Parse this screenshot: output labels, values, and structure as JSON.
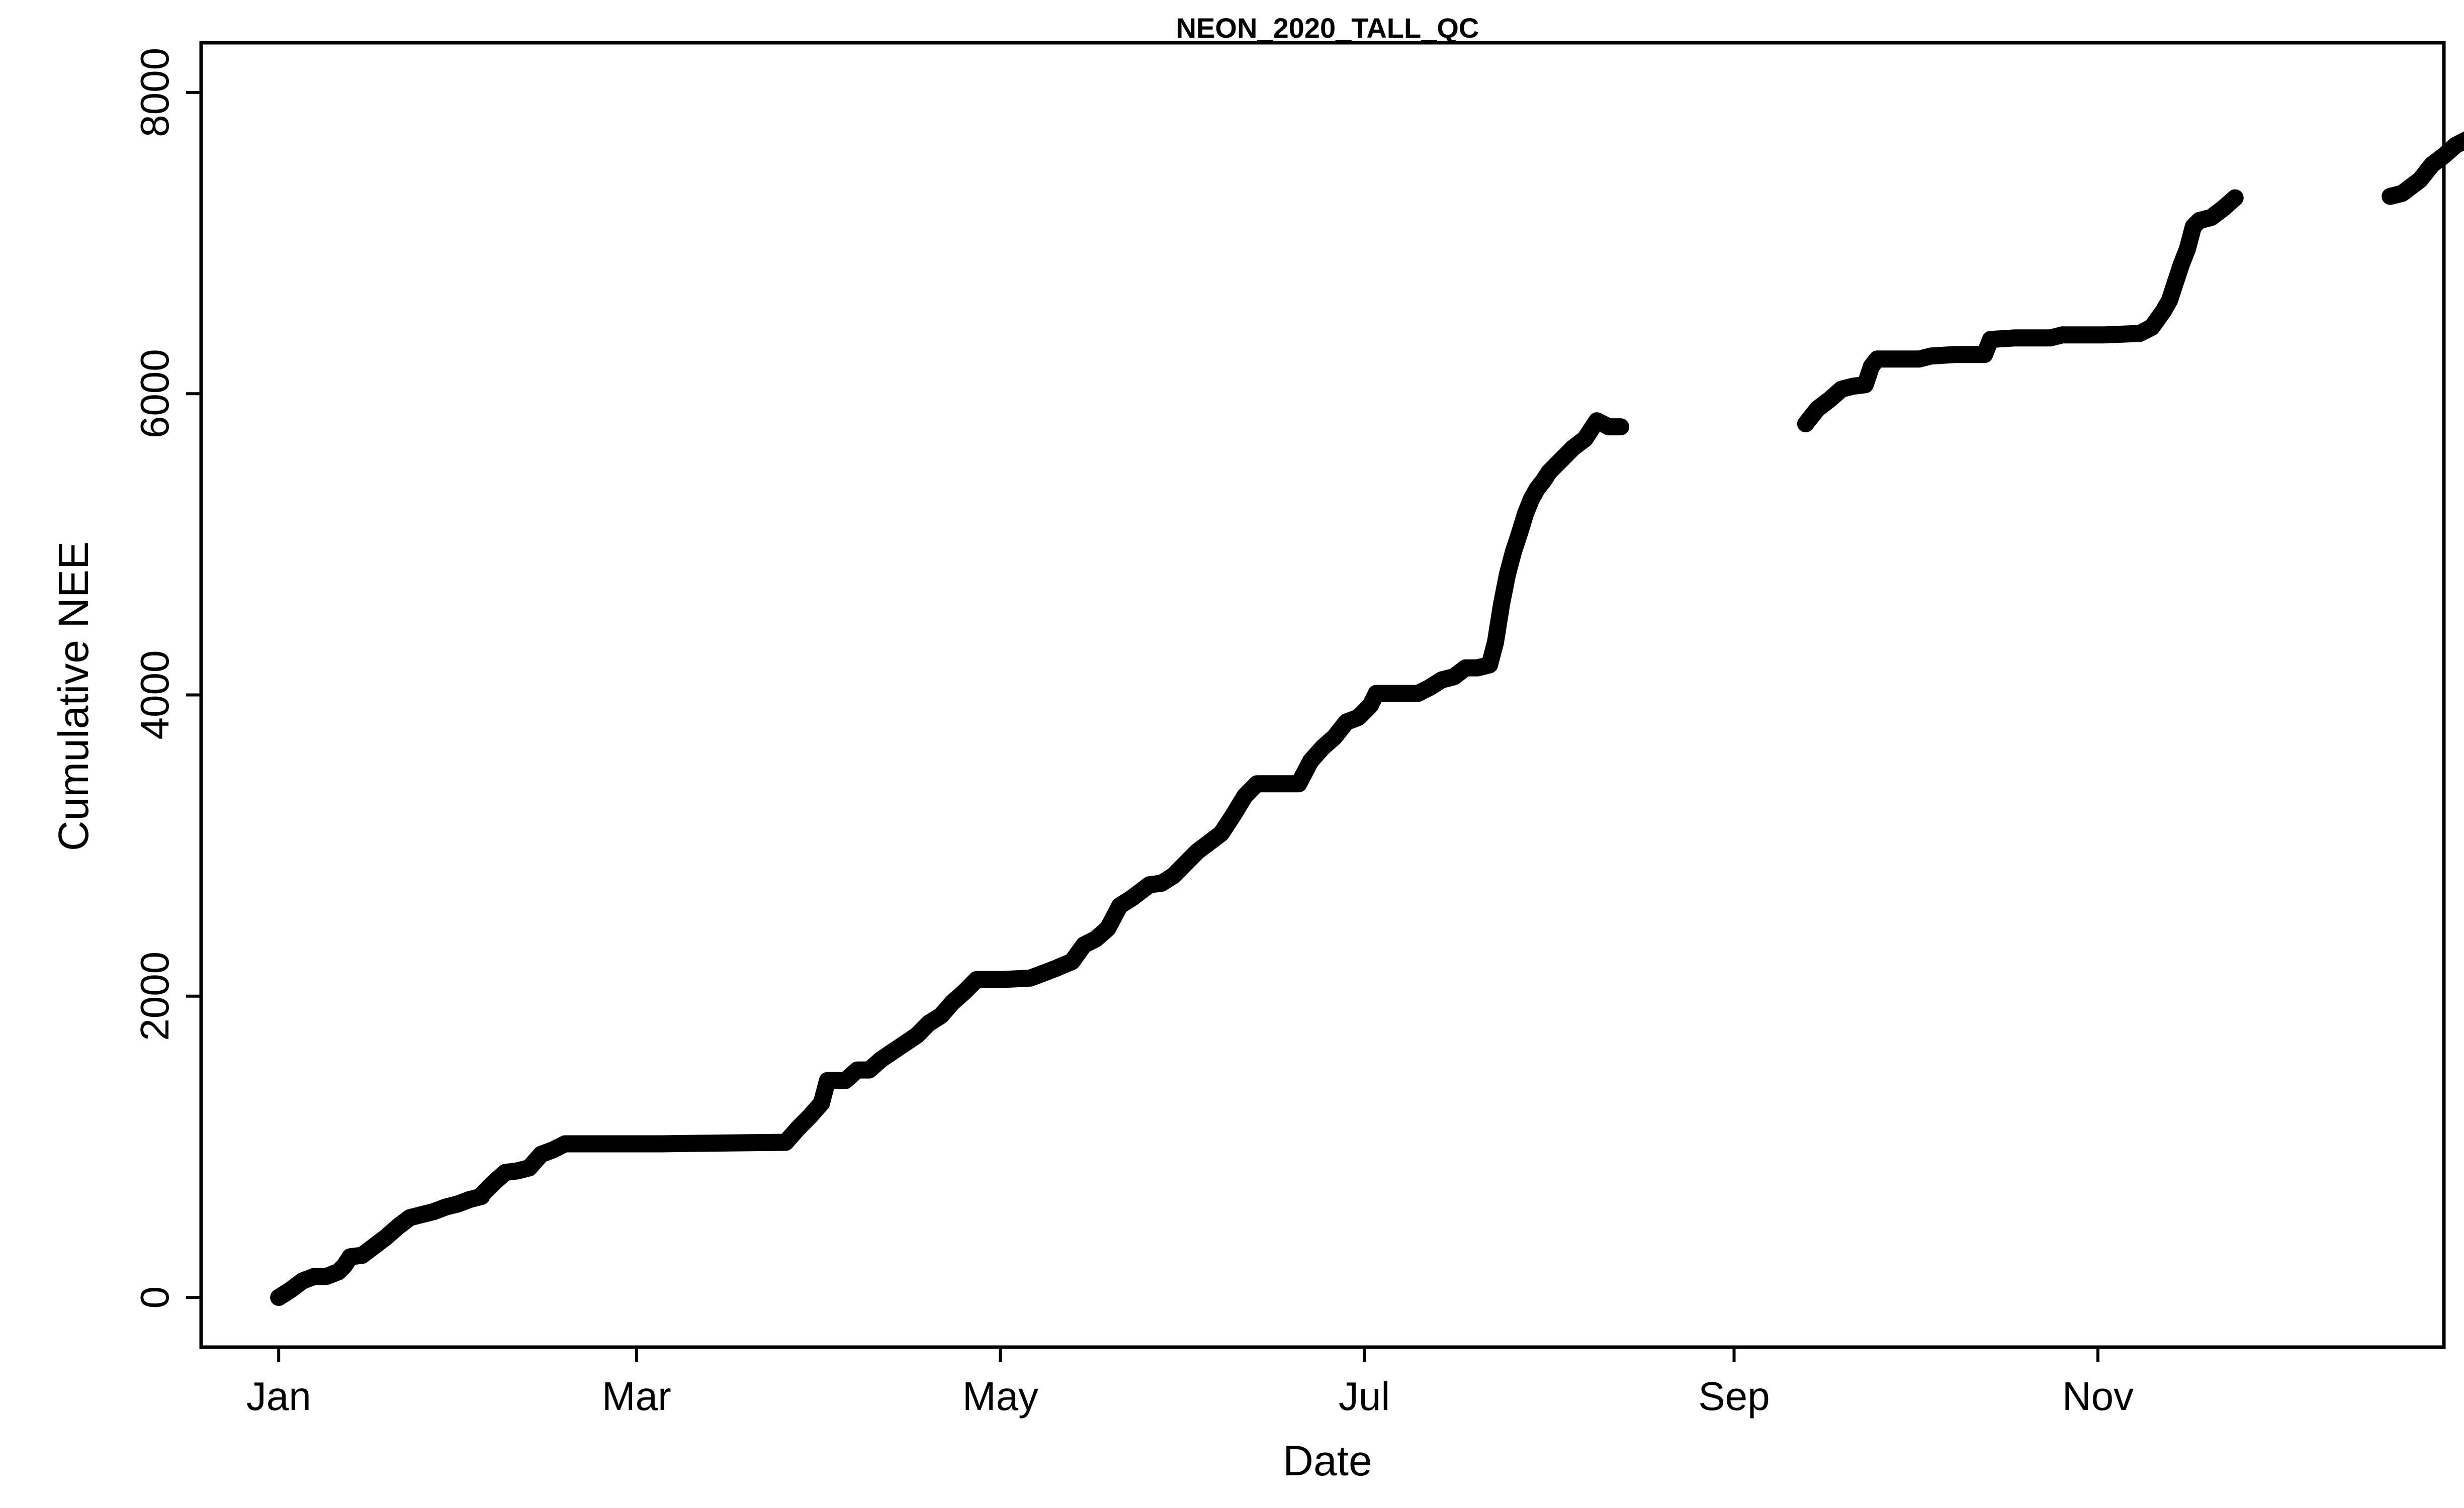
{
  "chart_data": {
    "type": "line",
    "title": "NEON_2020_TALL_QC",
    "xlabel": "Date",
    "ylabel": "Cumulative NEE",
    "xlim": [
      "2019-12-19",
      "2020-12-29"
    ],
    "ylim": [
      -330,
      8330
    ],
    "x_ticks": [
      {
        "label": "Jan",
        "date": "2020-01-01"
      },
      {
        "label": "Mar",
        "date": "2020-03-01"
      },
      {
        "label": "May",
        "date": "2020-05-01"
      },
      {
        "label": "Jul",
        "date": "2020-07-01"
      },
      {
        "label": "Sep",
        "date": "2020-09-01"
      },
      {
        "label": "Nov",
        "date": "2020-11-01"
      }
    ],
    "y_ticks": [
      0,
      2000,
      4000,
      6000,
      8000
    ],
    "grid": false,
    "colors": {
      "series": "#000000",
      "axes": "#000000",
      "background": "#ffffff"
    },
    "segments": [
      [
        [
          "2020-01-01",
          0
        ],
        [
          "2020-01-03",
          50
        ],
        [
          "2020-01-05",
          110
        ],
        [
          "2020-01-07",
          140
        ],
        [
          "2020-01-09",
          140
        ],
        [
          "2020-01-11",
          170
        ],
        [
          "2020-01-12",
          210
        ],
        [
          "2020-01-13",
          270
        ],
        [
          "2020-01-15",
          280
        ],
        [
          "2020-01-17",
          340
        ],
        [
          "2020-01-19",
          400
        ],
        [
          "2020-01-21",
          470
        ],
        [
          "2020-01-23",
          530
        ],
        [
          "2020-01-25",
          550
        ],
        [
          "2020-01-27",
          570
        ],
        [
          "2020-01-29",
          600
        ],
        [
          "2020-01-31",
          620
        ],
        [
          "2020-02-02",
          650
        ],
        [
          "2020-02-04",
          670
        ]
      ],
      [
        [
          "2020-02-04",
          680
        ],
        [
          "2020-02-06",
          760
        ],
        [
          "2020-02-08",
          830
        ],
        [
          "2020-02-10",
          840
        ],
        [
          "2020-02-12",
          860
        ],
        [
          "2020-02-14",
          950
        ],
        [
          "2020-02-16",
          980
        ],
        [
          "2020-02-18",
          1020
        ],
        [
          "2020-02-25",
          1020
        ],
        [
          "2020-03-05",
          1020
        ],
        [
          "2020-03-15",
          1025
        ],
        [
          "2020-03-26",
          1030
        ],
        [
          "2020-03-28",
          1120
        ],
        [
          "2020-03-30",
          1200
        ],
        [
          "2020-04-01",
          1290
        ],
        [
          "2020-04-02",
          1440
        ],
        [
          "2020-04-05",
          1440
        ],
        [
          "2020-04-07",
          1510
        ],
        [
          "2020-04-09",
          1510
        ],
        [
          "2020-04-11",
          1580
        ],
        [
          "2020-04-14",
          1660
        ],
        [
          "2020-04-17",
          1740
        ],
        [
          "2020-04-19",
          1820
        ],
        [
          "2020-04-21",
          1870
        ],
        [
          "2020-04-23",
          1960
        ],
        [
          "2020-04-25",
          2030
        ],
        [
          "2020-04-27",
          2110
        ],
        [
          "2020-05-01",
          2110
        ],
        [
          "2020-05-06",
          2120
        ],
        [
          "2020-05-08",
          2150
        ],
        [
          "2020-05-10",
          2180
        ],
        [
          "2020-05-13",
          2230
        ],
        [
          "2020-05-15",
          2340
        ],
        [
          "2020-05-17",
          2380
        ],
        [
          "2020-05-19",
          2450
        ],
        [
          "2020-05-21",
          2600
        ],
        [
          "2020-05-23",
          2650
        ],
        [
          "2020-05-26",
          2740
        ],
        [
          "2020-05-28",
          2750
        ],
        [
          "2020-05-30",
          2800
        ],
        [
          "2020-06-01",
          2880
        ],
        [
          "2020-06-03",
          2960
        ],
        [
          "2020-06-05",
          3020
        ],
        [
          "2020-06-07",
          3080
        ],
        [
          "2020-06-09",
          3200
        ],
        [
          "2020-06-11",
          3330
        ],
        [
          "2020-06-13",
          3410
        ],
        [
          "2020-06-16",
          3410
        ],
        [
          "2020-06-20",
          3410
        ],
        [
          "2020-06-22",
          3560
        ],
        [
          "2020-06-24",
          3650
        ],
        [
          "2020-06-26",
          3720
        ],
        [
          "2020-06-28",
          3820
        ],
        [
          "2020-06-30",
          3850
        ],
        [
          "2020-07-02",
          3930
        ],
        [
          "2020-07-03",
          4010
        ],
        [
          "2020-07-06",
          4010
        ],
        [
          "2020-07-10",
          4010
        ],
        [
          "2020-07-12",
          4050
        ],
        [
          "2020-07-14",
          4100
        ],
        [
          "2020-07-16",
          4120
        ],
        [
          "2020-07-18",
          4180
        ],
        [
          "2020-07-20",
          4180
        ],
        [
          "2020-07-22",
          4200
        ],
        [
          "2020-07-23",
          4350
        ],
        [
          "2020-07-24",
          4600
        ],
        [
          "2020-07-25",
          4800
        ],
        [
          "2020-07-26",
          4950
        ],
        [
          "2020-07-27",
          5070
        ],
        [
          "2020-07-28",
          5200
        ],
        [
          "2020-07-29",
          5300
        ],
        [
          "2020-07-30",
          5370
        ],
        [
          "2020-07-31",
          5420
        ],
        [
          "2020-08-01",
          5480
        ],
        [
          "2020-08-03",
          5560
        ],
        [
          "2020-08-05",
          5640
        ],
        [
          "2020-08-07",
          5700
        ],
        [
          "2020-08-09",
          5820
        ],
        [
          "2020-08-11",
          5780
        ],
        [
          "2020-08-13",
          5780
        ]
      ],
      [
        [
          "2020-09-13",
          5800
        ],
        [
          "2020-09-15",
          5900
        ],
        [
          "2020-09-17",
          5960
        ],
        [
          "2020-09-19",
          6030
        ],
        [
          "2020-09-21",
          6050
        ],
        [
          "2020-09-23",
          6060
        ],
        [
          "2020-09-24",
          6180
        ],
        [
          "2020-09-25",
          6230
        ],
        [
          "2020-09-27",
          6230
        ],
        [
          "2020-10-02",
          6230
        ],
        [
          "2020-10-04",
          6250
        ],
        [
          "2020-10-08",
          6260
        ],
        [
          "2020-10-13",
          6260
        ],
        [
          "2020-10-14",
          6360
        ],
        [
          "2020-10-18",
          6370
        ],
        [
          "2020-10-24",
          6370
        ],
        [
          "2020-10-26",
          6390
        ],
        [
          "2020-11-02",
          6390
        ],
        [
          "2020-11-08",
          6400
        ],
        [
          "2020-11-10",
          6440
        ],
        [
          "2020-11-12",
          6550
        ],
        [
          "2020-11-13",
          6620
        ],
        [
          "2020-11-14",
          6740
        ],
        [
          "2020-11-15",
          6860
        ],
        [
          "2020-11-16",
          6960
        ],
        [
          "2020-11-17",
          7110
        ],
        [
          "2020-11-18",
          7150
        ],
        [
          "2020-11-20",
          7170
        ],
        [
          "2020-11-22",
          7230
        ],
        [
          "2020-11-24",
          7300
        ]
      ],
      [
        [
          "2020-12-20",
          7310
        ],
        [
          "2020-12-22",
          7330
        ],
        [
          "2020-12-23",
          7360
        ],
        [
          "2020-12-25",
          7420
        ],
        [
          "2020-12-27",
          7520
        ],
        [
          "2020-12-29",
          7580
        ],
        [
          "2020-12-31",
          7650
        ],
        [
          "2021-01-02",
          7690
        ],
        [
          "2021-01-04",
          7720
        ],
        [
          "2021-01-06",
          7770
        ],
        [
          "2021-01-08",
          7820
        ],
        [
          "2021-01-10",
          7860
        ],
        [
          "2021-01-12",
          7870
        ]
      ]
    ]
  }
}
